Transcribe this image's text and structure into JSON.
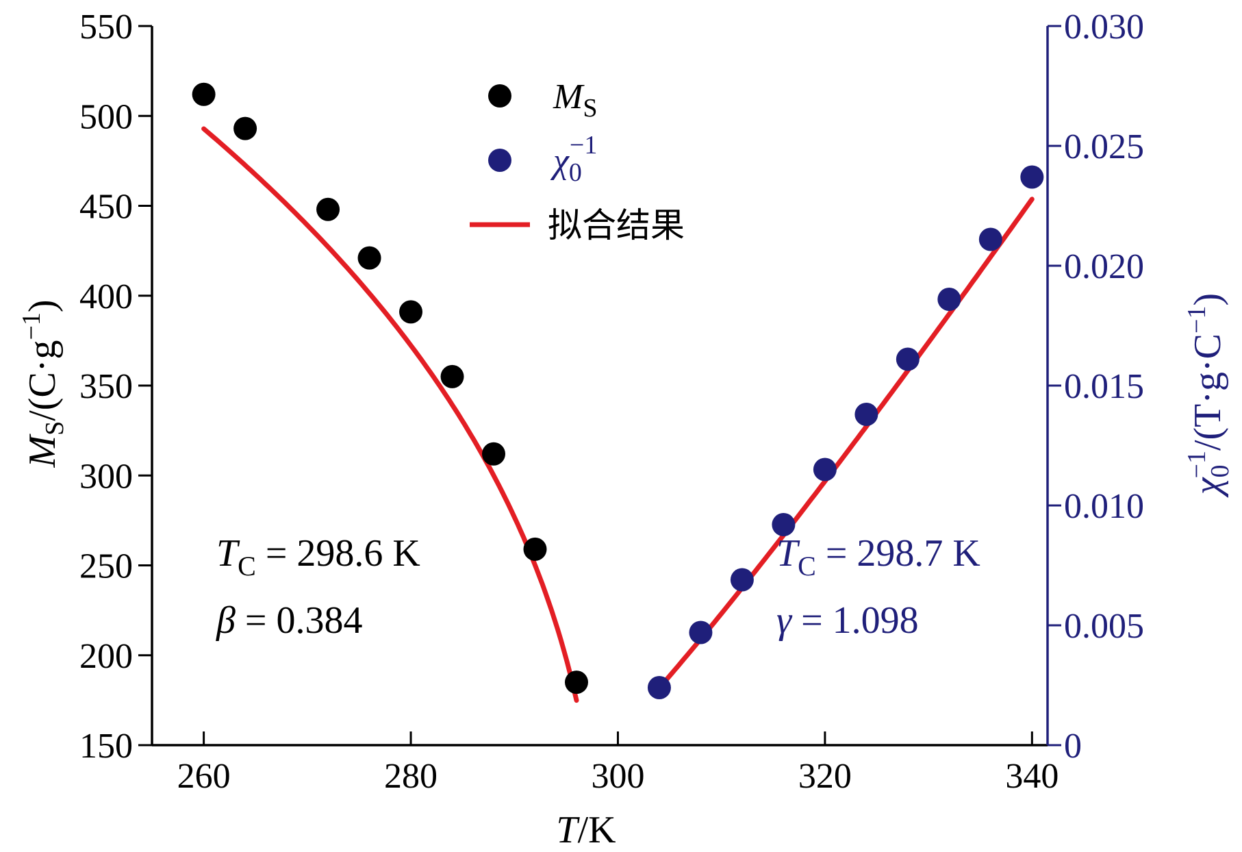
{
  "chart_data": {
    "type": "scatter",
    "x": {
      "label": "T / K",
      "range": [
        255,
        341.5
      ],
      "ticks": [
        260,
        280,
        300,
        320,
        340
      ]
    },
    "y_left": {
      "label": "M_S / (C·g^-1)",
      "range": [
        150,
        550
      ],
      "ticks": [
        150,
        200,
        250,
        300,
        350,
        400,
        450,
        500,
        550
      ],
      "color": "#000000"
    },
    "y_right": {
      "label": "χ_0^-1 / (T·g·C^-1)",
      "range": [
        0,
        0.03
      ],
      "ticks": [
        0,
        0.005,
        0.01,
        0.015,
        0.02,
        0.025,
        0.03
      ],
      "tick_labels": [
        "0",
        "0.005",
        "0.010",
        "0.015",
        "0.020",
        "0.025",
        "0.030"
      ],
      "color": "#1f1f7a"
    },
    "series": [
      {
        "name": "M_S",
        "axis": "left",
        "color": "#000000",
        "points": [
          [
            260,
            512
          ],
          [
            264,
            493
          ],
          [
            272,
            448
          ],
          [
            276,
            421
          ],
          [
            280,
            391
          ],
          [
            284,
            355
          ],
          [
            288,
            312
          ],
          [
            292,
            259
          ],
          [
            296,
            185
          ]
        ]
      },
      {
        "name": "χ_0^-1",
        "axis": "right",
        "color": "#1f1f7a",
        "points": [
          [
            304,
            0.0024
          ],
          [
            308,
            0.0047
          ],
          [
            312,
            0.0069
          ],
          [
            316,
            0.0092
          ],
          [
            320,
            0.0115
          ],
          [
            324,
            0.0138
          ],
          [
            328,
            0.0161
          ],
          [
            332,
            0.0186
          ],
          [
            336,
            0.0211
          ],
          [
            340,
            0.0237
          ]
        ]
      }
    ],
    "fits": [
      {
        "axis": "left",
        "type": "power_law_Ms",
        "A": 1081.2,
        "Tc": 298.6,
        "exponent": 0.384,
        "x_range": [
          260,
          296
        ]
      },
      {
        "axis": "right",
        "type": "power_law_chi",
        "A": 0.000383,
        "Tc": 298.7,
        "exponent": 1.098,
        "x_range": [
          304,
          340
        ]
      }
    ],
    "fit_color": "#e31e24",
    "legend": {
      "position": "top-center",
      "entries": [
        {
          "label_main": "M",
          "label_sub": "S",
          "label_sup": "",
          "marker": "dot",
          "color": "#000000",
          "text_color": "#000000"
        },
        {
          "label_main": "χ",
          "label_sub": "0",
          "label_sup": "−1",
          "marker": "dot",
          "color": "#1f1f7a",
          "text_color": "#1f1f7a"
        },
        {
          "label_main": "拟合结果",
          "label_sub": "",
          "label_sup": "",
          "marker": "line",
          "color": "#e31e24",
          "text_color": "#000000"
        }
      ]
    },
    "annotations": [
      {
        "lines": [
          {
            "main": "T",
            "sub": "C",
            "rest": " = 298.6 K"
          },
          {
            "main": "β",
            "sub": "",
            "rest": " = 0.384"
          }
        ],
        "color": "#000000",
        "side": "left"
      },
      {
        "lines": [
          {
            "main": "T",
            "sub": "C",
            "rest": " = 298.7 K"
          },
          {
            "main": "γ",
            "sub": "",
            "rest": " = 1.098"
          }
        ],
        "color": "#1f1f7a",
        "side": "right"
      }
    ]
  }
}
